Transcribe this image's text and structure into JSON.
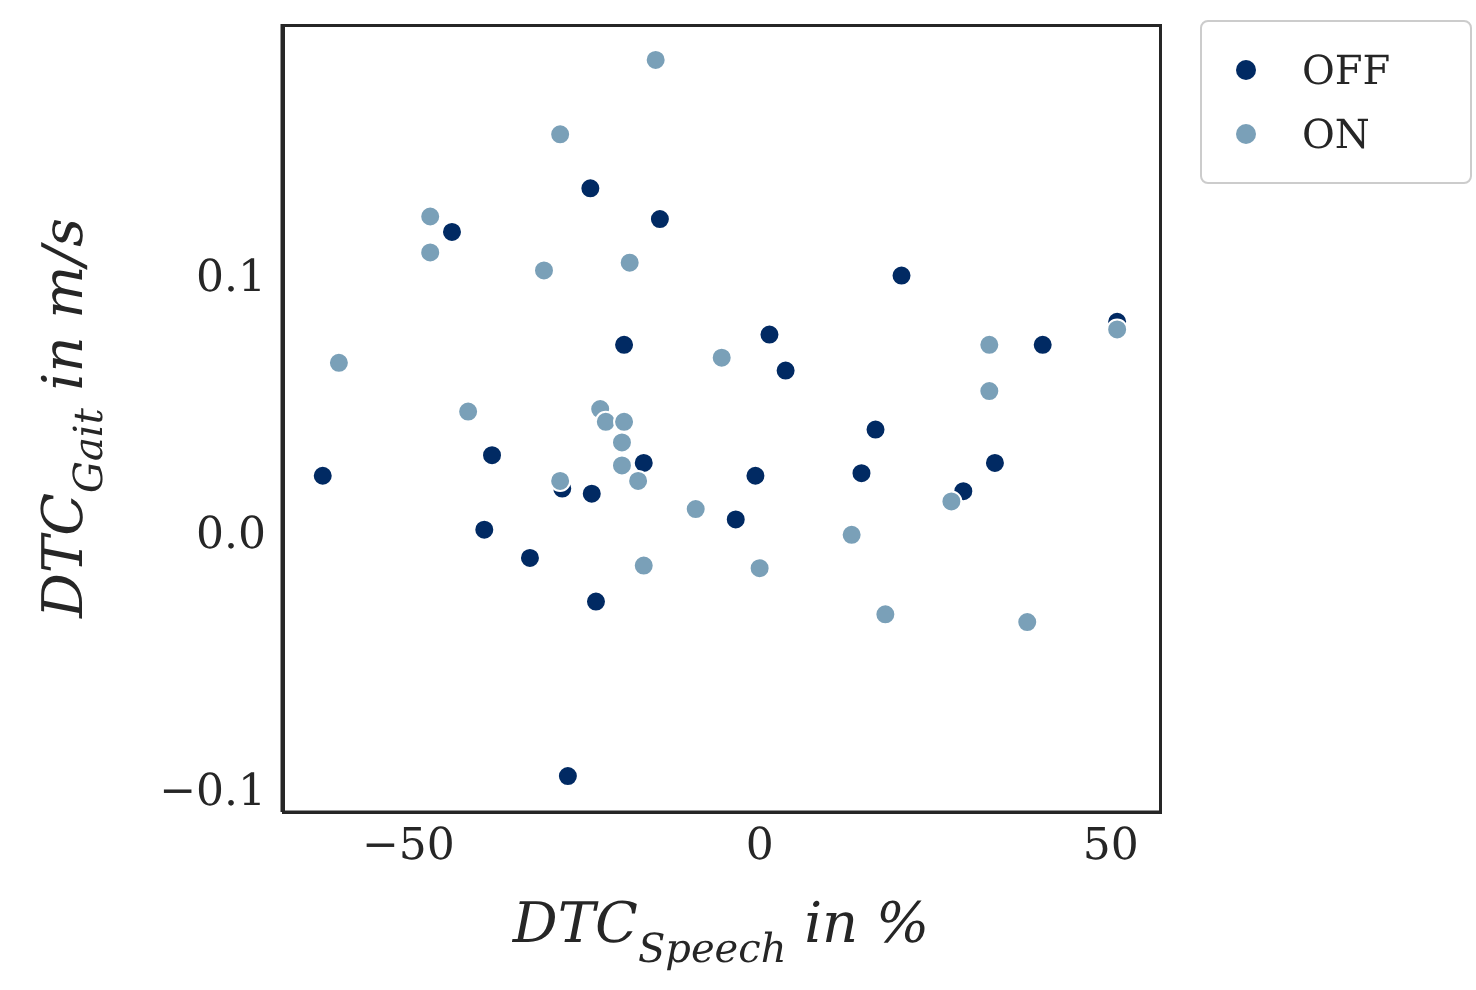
{
  "chart_data": {
    "type": "scatter",
    "xlabel": "DTC$_{Speech}$ in %",
    "ylabel": "DTC$_{Gait}$ in m/s",
    "xlim": [
      -68,
      57
    ],
    "ylim": [
      -0.109,
      0.198
    ],
    "xticks": [
      {
        "value": -50,
        "label": "−50"
      },
      0,
      50
    ],
    "yticks": [
      {
        "value": -0.1,
        "label": "−0.1"
      },
      {
        "value": 0,
        "label": "0.0"
      },
      0.1
    ],
    "grid": false,
    "legend": "top right",
    "marker": "circle",
    "series": [
      {
        "name": "OFF",
        "color": "#012a63",
        "x": [
          -62.2,
          -43.8,
          -24.1,
          -14.2,
          -19.3,
          -38.1,
          -39.2,
          -32.7,
          -23.9,
          -28.1,
          -16.5,
          -23.3,
          -27.3,
          1.4,
          3.7,
          -3.4,
          -0.6,
          20.2,
          16.5,
          14.5,
          29.0,
          33.5,
          40.3,
          50.9
        ],
        "values": [
          0.022,
          0.117,
          0.134,
          0.122,
          0.073,
          0.03,
          0.001,
          -0.01,
          0.015,
          0.017,
          0.027,
          -0.027,
          -0.095,
          0.077,
          0.063,
          0.005,
          0.022,
          0.1,
          0.04,
          0.023,
          0.016,
          0.027,
          0.073,
          0.082
        ]
      },
      {
        "name": "ON",
        "color": "#7aa0b8",
        "x": [
          -14.8,
          -28.4,
          -46.9,
          -46.9,
          -30.7,
          -18.5,
          -59.9,
          -41.5,
          -22.7,
          -21.9,
          -19.3,
          -19.6,
          -19.6,
          -17.3,
          -28.4,
          -16.5,
          -9.1,
          -5.4,
          0,
          13.1,
          17.9,
          27.3,
          32.7,
          32.7,
          38.1,
          50.9
        ],
        "values": [
          0.184,
          0.155,
          0.123,
          0.109,
          0.102,
          0.105,
          0.066,
          0.047,
          0.048,
          0.043,
          0.043,
          0.035,
          0.026,
          0.02,
          0.02,
          -0.013,
          0.009,
          0.068,
          -0.014,
          -0.001,
          -0.032,
          0.012,
          0.073,
          0.055,
          -0.035,
          0.079
        ]
      }
    ]
  }
}
